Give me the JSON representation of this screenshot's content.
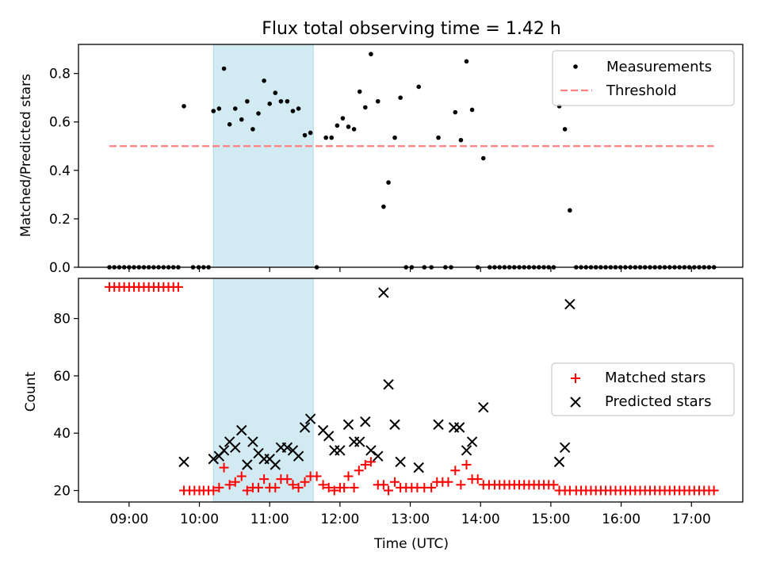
{
  "chart_data": {
    "title": "Flux total observing time = 1.42 h",
    "type": "scatter",
    "shaded_interval": {
      "start_h": 10.2,
      "end_h": 11.62,
      "color": "#add8e6"
    },
    "x_range_h": [
      8.28,
      17.73
    ],
    "xlabel": "Time (UTC)",
    "xticks": [
      {
        "value": 9,
        "label": "09:00"
      },
      {
        "value": 10,
        "label": "10:00"
      },
      {
        "value": 11,
        "label": "11:00"
      },
      {
        "value": 12,
        "label": "12:00"
      },
      {
        "value": 13,
        "label": "13:00"
      },
      {
        "value": 14,
        "label": "14:00"
      },
      {
        "value": 15,
        "label": "15:00"
      },
      {
        "value": 16,
        "label": "16:00"
      },
      {
        "value": 17,
        "label": "17:00"
      }
    ],
    "top_panel": {
      "ylabel": "Matched/Predicted stars",
      "ylim": [
        0,
        0.92
      ],
      "yticks": [
        {
          "value": 0,
          "label": "0.0"
        },
        {
          "value": 0.2,
          "label": "0.2"
        },
        {
          "value": 0.4,
          "label": "0.4"
        },
        {
          "value": 0.6,
          "label": "0.6"
        },
        {
          "value": 0.8,
          "label": "0.8"
        }
      ],
      "threshold": {
        "value": 0.5,
        "x_start_h": 8.72,
        "x_end_h": 17.32,
        "color": "#ff8080"
      },
      "legend": {
        "location": "top-right",
        "measurements_label": "Measurements",
        "threshold_label": "Threshold"
      },
      "measurements": [
        [
          8.72,
          0
        ],
        [
          8.79,
          0
        ],
        [
          8.86,
          0
        ],
        [
          8.93,
          0
        ],
        [
          9.0,
          0
        ],
        [
          9.07,
          0
        ],
        [
          9.14,
          0
        ],
        [
          9.21,
          0
        ],
        [
          9.28,
          0
        ],
        [
          9.35,
          0
        ],
        [
          9.42,
          0
        ],
        [
          9.49,
          0
        ],
        [
          9.56,
          0
        ],
        [
          9.63,
          0
        ],
        [
          9.7,
          0
        ],
        [
          9.78,
          0.665
        ],
        [
          9.91,
          0
        ],
        [
          9.99,
          0
        ],
        [
          10.06,
          0
        ],
        [
          10.13,
          0
        ],
        [
          10.2,
          0.645
        ],
        [
          10.28,
          0.655
        ],
        [
          10.35,
          0.82
        ],
        [
          10.43,
          0.59
        ],
        [
          10.51,
          0.655
        ],
        [
          10.6,
          0.61
        ],
        [
          10.68,
          0.685
        ],
        [
          10.76,
          0.57
        ],
        [
          10.84,
          0.635
        ],
        [
          10.92,
          0.77
        ],
        [
          11.0,
          0.675
        ],
        [
          11.08,
          0.72
        ],
        [
          11.16,
          0.685
        ],
        [
          11.25,
          0.685
        ],
        [
          11.33,
          0.645
        ],
        [
          11.41,
          0.655
        ],
        [
          11.5,
          0.545
        ],
        [
          11.58,
          0.555
        ],
        [
          11.67,
          0
        ],
        [
          11.8,
          0.535
        ],
        [
          11.88,
          0.535
        ],
        [
          11.96,
          0.585
        ],
        [
          12.04,
          0.615
        ],
        [
          12.12,
          0.58
        ],
        [
          12.2,
          0.57
        ],
        [
          12.28,
          0.725
        ],
        [
          12.36,
          0.66
        ],
        [
          12.44,
          0.88
        ],
        [
          12.54,
          0.685
        ],
        [
          12.62,
          0.25
        ],
        [
          12.69,
          0.35
        ],
        [
          12.78,
          0.535
        ],
        [
          12.86,
          0.7
        ],
        [
          12.94,
          0
        ],
        [
          13.02,
          0
        ],
        [
          13.12,
          0.745
        ],
        [
          13.2,
          0
        ],
        [
          13.3,
          0
        ],
        [
          13.4,
          0.535
        ],
        [
          13.5,
          0
        ],
        [
          13.58,
          0
        ],
        [
          13.64,
          0.64
        ],
        [
          13.72,
          0.525
        ],
        [
          13.8,
          0.85
        ],
        [
          13.88,
          0.65
        ],
        [
          13.96,
          0
        ],
        [
          14.04,
          0.45
        ],
        [
          14.13,
          0
        ],
        [
          14.2,
          0
        ],
        [
          14.27,
          0
        ],
        [
          14.34,
          0
        ],
        [
          14.41,
          0
        ],
        [
          14.48,
          0
        ],
        [
          14.55,
          0
        ],
        [
          14.62,
          0
        ],
        [
          14.69,
          0
        ],
        [
          14.76,
          0
        ],
        [
          14.83,
          0
        ],
        [
          14.9,
          0
        ],
        [
          14.97,
          0
        ],
        [
          15.04,
          0
        ],
        [
          15.12,
          0.665
        ],
        [
          15.2,
          0.57
        ],
        [
          15.27,
          0.235
        ],
        [
          15.36,
          0
        ],
        [
          15.43,
          0
        ],
        [
          15.5,
          0
        ],
        [
          15.57,
          0
        ],
        [
          15.64,
          0
        ],
        [
          15.71,
          0
        ],
        [
          15.78,
          0
        ],
        [
          15.85,
          0
        ],
        [
          15.92,
          0
        ],
        [
          15.99,
          0
        ],
        [
          16.06,
          0
        ],
        [
          16.13,
          0
        ],
        [
          16.2,
          0
        ],
        [
          16.27,
          0
        ],
        [
          16.34,
          0
        ],
        [
          16.41,
          0
        ],
        [
          16.48,
          0
        ],
        [
          16.55,
          0
        ],
        [
          16.62,
          0
        ],
        [
          16.69,
          0
        ],
        [
          16.76,
          0
        ],
        [
          16.83,
          0
        ],
        [
          16.9,
          0
        ],
        [
          16.97,
          0
        ],
        [
          17.04,
          0
        ],
        [
          17.11,
          0
        ],
        [
          17.18,
          0
        ],
        [
          17.25,
          0
        ],
        [
          17.32,
          0
        ]
      ]
    },
    "bottom_panel": {
      "ylabel": "Count",
      "ylim": [
        16,
        94
      ],
      "yticks": [
        {
          "value": 20,
          "label": "20"
        },
        {
          "value": 40,
          "label": "40"
        },
        {
          "value": 60,
          "label": "60"
        },
        {
          "value": 80,
          "label": "80"
        }
      ],
      "legend": {
        "location": "center-right",
        "matched_label": "Matched stars",
        "predicted_label": "Predicted stars"
      },
      "matched_color": "#ff0000",
      "predicted_color": "#000000",
      "matched": [
        [
          8.72,
          91
        ],
        [
          8.79,
          91
        ],
        [
          8.86,
          91
        ],
        [
          8.93,
          91
        ],
        [
          9.0,
          91
        ],
        [
          9.07,
          91
        ],
        [
          9.14,
          91
        ],
        [
          9.21,
          91
        ],
        [
          9.28,
          91
        ],
        [
          9.35,
          91
        ],
        [
          9.42,
          91
        ],
        [
          9.49,
          91
        ],
        [
          9.56,
          91
        ],
        [
          9.63,
          91
        ],
        [
          9.7,
          91
        ],
        [
          9.78,
          20
        ],
        [
          9.86,
          20
        ],
        [
          9.93,
          20
        ],
        [
          10.0,
          20
        ],
        [
          10.06,
          20
        ],
        [
          10.13,
          20
        ],
        [
          10.2,
          20
        ],
        [
          10.28,
          21
        ],
        [
          10.35,
          28
        ],
        [
          10.43,
          22
        ],
        [
          10.51,
          23
        ],
        [
          10.6,
          25
        ],
        [
          10.68,
          20
        ],
        [
          10.76,
          21
        ],
        [
          10.84,
          21
        ],
        [
          10.92,
          24
        ],
        [
          11.0,
          21
        ],
        [
          11.08,
          21
        ],
        [
          11.16,
          24
        ],
        [
          11.25,
          24
        ],
        [
          11.33,
          22
        ],
        [
          11.41,
          21
        ],
        [
          11.5,
          23
        ],
        [
          11.58,
          25
        ],
        [
          11.67,
          25
        ],
        [
          11.76,
          22
        ],
        [
          11.84,
          21
        ],
        [
          11.92,
          20
        ],
        [
          12.0,
          21
        ],
        [
          12.06,
          21
        ],
        [
          12.12,
          25
        ],
        [
          12.2,
          21
        ],
        [
          12.27,
          27
        ],
        [
          12.36,
          29
        ],
        [
          12.44,
          30
        ],
        [
          12.54,
          22
        ],
        [
          12.62,
          22
        ],
        [
          12.69,
          20
        ],
        [
          12.78,
          23
        ],
        [
          12.86,
          21
        ],
        [
          12.94,
          21
        ],
        [
          13.02,
          21
        ],
        [
          13.1,
          21
        ],
        [
          13.2,
          21
        ],
        [
          13.3,
          21
        ],
        [
          13.38,
          23
        ],
        [
          13.46,
          23
        ],
        [
          13.54,
          23
        ],
        [
          13.64,
          27
        ],
        [
          13.72,
          22
        ],
        [
          13.8,
          29
        ],
        [
          13.88,
          24
        ],
        [
          13.96,
          24
        ],
        [
          14.04,
          22
        ],
        [
          14.12,
          22
        ],
        [
          14.2,
          22
        ],
        [
          14.27,
          22
        ],
        [
          14.34,
          22
        ],
        [
          14.41,
          22
        ],
        [
          14.48,
          22
        ],
        [
          14.55,
          22
        ],
        [
          14.62,
          22
        ],
        [
          14.69,
          22
        ],
        [
          14.76,
          22
        ],
        [
          14.83,
          22
        ],
        [
          14.9,
          22
        ],
        [
          14.97,
          22
        ],
        [
          15.04,
          22
        ],
        [
          15.12,
          20
        ],
        [
          15.2,
          20
        ],
        [
          15.27,
          20
        ],
        [
          15.36,
          20
        ],
        [
          15.43,
          20
        ],
        [
          15.5,
          20
        ],
        [
          15.57,
          20
        ],
        [
          15.64,
          20
        ],
        [
          15.71,
          20
        ],
        [
          15.78,
          20
        ],
        [
          15.85,
          20
        ],
        [
          15.92,
          20
        ],
        [
          15.99,
          20
        ],
        [
          16.06,
          20
        ],
        [
          16.13,
          20
        ],
        [
          16.2,
          20
        ],
        [
          16.27,
          20
        ],
        [
          16.34,
          20
        ],
        [
          16.41,
          20
        ],
        [
          16.48,
          20
        ],
        [
          16.55,
          20
        ],
        [
          16.62,
          20
        ],
        [
          16.69,
          20
        ],
        [
          16.76,
          20
        ],
        [
          16.83,
          20
        ],
        [
          16.9,
          20
        ],
        [
          16.97,
          20
        ],
        [
          17.04,
          20
        ],
        [
          17.11,
          20
        ],
        [
          17.18,
          20
        ],
        [
          17.25,
          20
        ],
        [
          17.32,
          20
        ]
      ],
      "predicted": [
        [
          9.78,
          30
        ],
        [
          10.2,
          31
        ],
        [
          10.28,
          32
        ],
        [
          10.35,
          34
        ],
        [
          10.43,
          37
        ],
        [
          10.51,
          35
        ],
        [
          10.6,
          41
        ],
        [
          10.68,
          29
        ],
        [
          10.76,
          37
        ],
        [
          10.84,
          33
        ],
        [
          10.92,
          31
        ],
        [
          11.0,
          31
        ],
        [
          11.08,
          29
        ],
        [
          11.16,
          35
        ],
        [
          11.25,
          35
        ],
        [
          11.33,
          34
        ],
        [
          11.41,
          32
        ],
        [
          11.5,
          42
        ],
        [
          11.58,
          45
        ],
        [
          11.76,
          41
        ],
        [
          11.84,
          39
        ],
        [
          11.92,
          34
        ],
        [
          12.0,
          34
        ],
        [
          12.12,
          43
        ],
        [
          12.2,
          37
        ],
        [
          12.28,
          37
        ],
        [
          12.36,
          44
        ],
        [
          12.44,
          34
        ],
        [
          12.54,
          32
        ],
        [
          12.62,
          89
        ],
        [
          12.69,
          57
        ],
        [
          12.78,
          43
        ],
        [
          12.86,
          30
        ],
        [
          13.12,
          28
        ],
        [
          13.4,
          43
        ],
        [
          13.62,
          42
        ],
        [
          13.7,
          42
        ],
        [
          13.8,
          34
        ],
        [
          13.88,
          37
        ],
        [
          14.04,
          49
        ],
        [
          15.12,
          30
        ],
        [
          15.2,
          35
        ],
        [
          15.27,
          85
        ]
      ]
    }
  }
}
